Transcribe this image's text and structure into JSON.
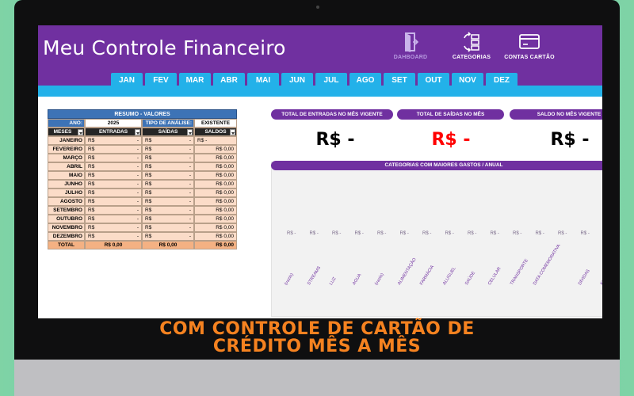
{
  "app": {
    "title": "Meu Controle Financeiro"
  },
  "nav": [
    {
      "label": "DAHBOARD",
      "icon": "dashboard-door-icon"
    },
    {
      "label": "CATEGORIAS",
      "icon": "categories-icon"
    },
    {
      "label": "CONTAS CARTÃO",
      "icon": "credit-card-icon"
    }
  ],
  "months": [
    "JAN",
    "FEV",
    "MAR",
    "ABR",
    "MAI",
    "JUN",
    "JUL",
    "AGO",
    "SET",
    "OUT",
    "NOV",
    "DEZ"
  ],
  "summary": {
    "title": "RESUMO - VALORES",
    "year_label": "ANO:",
    "year_value": "2025",
    "analysis_label": "TIPO DE ANÁLISE:",
    "analysis_value": "EXISTENTE",
    "col_months": "MESES",
    "col_in": "ENTRADAS",
    "col_out": "SAÍDAS",
    "col_balance": "SALDOS",
    "currency": "R$",
    "rows": [
      {
        "month": "JANEIRO",
        "in": "-",
        "out": "-",
        "balance": "R$ -"
      },
      {
        "month": "FEVEREIRO",
        "in": "-",
        "out": "-",
        "balance": "R$ 0,00"
      },
      {
        "month": "MARÇO",
        "in": "-",
        "out": "-",
        "balance": "R$ 0,00"
      },
      {
        "month": "ABRIL",
        "in": "-",
        "out": "-",
        "balance": "R$ 0,00"
      },
      {
        "month": "MAIO",
        "in": "-",
        "out": "-",
        "balance": "R$ 0,00"
      },
      {
        "month": "JUNHO",
        "in": "-",
        "out": "-",
        "balance": "R$ 0,00"
      },
      {
        "month": "JULHO",
        "in": "-",
        "out": "-",
        "balance": "R$ 0,00"
      },
      {
        "month": "AGOSTO",
        "in": "-",
        "out": "-",
        "balance": "R$ 0,00"
      },
      {
        "month": "SETEMBRO",
        "in": "-",
        "out": "-",
        "balance": "R$ 0,00"
      },
      {
        "month": "OUTUBRO",
        "in": "-",
        "out": "-",
        "balance": "R$ 0,00"
      },
      {
        "month": "NOVEMBRO",
        "in": "-",
        "out": "-",
        "balance": "R$ 0,00"
      },
      {
        "month": "DEZEMBRO",
        "in": "-",
        "out": "-",
        "balance": "R$ 0,00"
      }
    ],
    "total_label": "TOTAL",
    "total_in": "R$ 0,00",
    "total_out": "R$ 0,00",
    "total_balance": "R$ 0,00"
  },
  "kpis": [
    {
      "label": "TOTAL DE ENTRADAS NO MÊS VIGENTE",
      "value": "R$ -",
      "color": "#000000"
    },
    {
      "label": "TOTAL DE SAÍDAS  NO MÊS",
      "value": "R$ -",
      "color": "#ff0000"
    },
    {
      "label": "SALDO  NO MÊS VIGENTE",
      "value": "R$ -",
      "color": "#000000"
    }
  ],
  "chart": {
    "title": "CATEGORIAS COM MAIORES GASTOS  / ANUAL",
    "value_label": "R$ -",
    "categories": [
      "(vazio)",
      "STREAMS",
      "LUZ",
      "AGUA",
      "(vazio)",
      "ALIMENTAÇÃO",
      "FARMÁCIA",
      "ALUGUEL",
      "SAÚDE",
      "CELULAR",
      "TRANSPORTE",
      "DATA COMEMORATIVA",
      "",
      "DÍVIDAS",
      "EDUCAÇÃO"
    ]
  },
  "caption": {
    "line1": "COM CONTROLE DE CARTÃO DE",
    "line2": "CRÉDITO MÊS A MÊS"
  }
}
